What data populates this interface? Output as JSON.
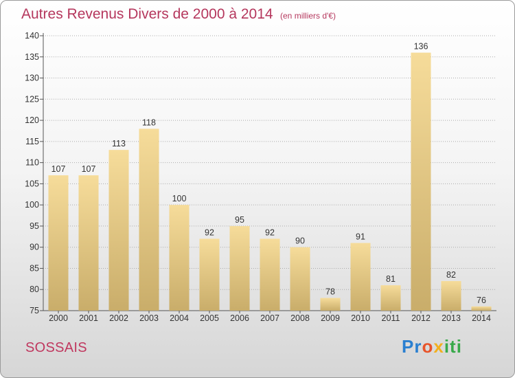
{
  "header": {
    "title": "Autres Revenus Divers de 2000 à 2014",
    "unit": "(en milliers d'€)"
  },
  "footer": {
    "place": "SOSSAIS",
    "logo": "Proxiti"
  },
  "colors": {
    "bar_light": "#f6dc9a",
    "bar_dark": "#c9ad6a",
    "title": "#b5375d",
    "grid": "#aaaaaa"
  },
  "chart_data": {
    "type": "bar",
    "title": "Autres Revenus Divers de 2000 à 2014",
    "subtitle": "(en milliers d'€)",
    "xlabel": "",
    "ylabel": "",
    "categories": [
      "2000",
      "2001",
      "2002",
      "2003",
      "2004",
      "2005",
      "2006",
      "2007",
      "2008",
      "2009",
      "2010",
      "2011",
      "2012",
      "2013",
      "2014"
    ],
    "values": [
      107,
      107,
      113,
      118,
      100,
      92,
      95,
      92,
      90,
      78,
      91,
      81,
      136,
      82,
      76
    ],
    "ylim": [
      75,
      140
    ],
    "yticks": [
      75,
      80,
      85,
      90,
      95,
      100,
      105,
      110,
      115,
      120,
      125,
      130,
      135,
      140
    ],
    "grid": true,
    "data_labels": true,
    "legend": "none"
  }
}
